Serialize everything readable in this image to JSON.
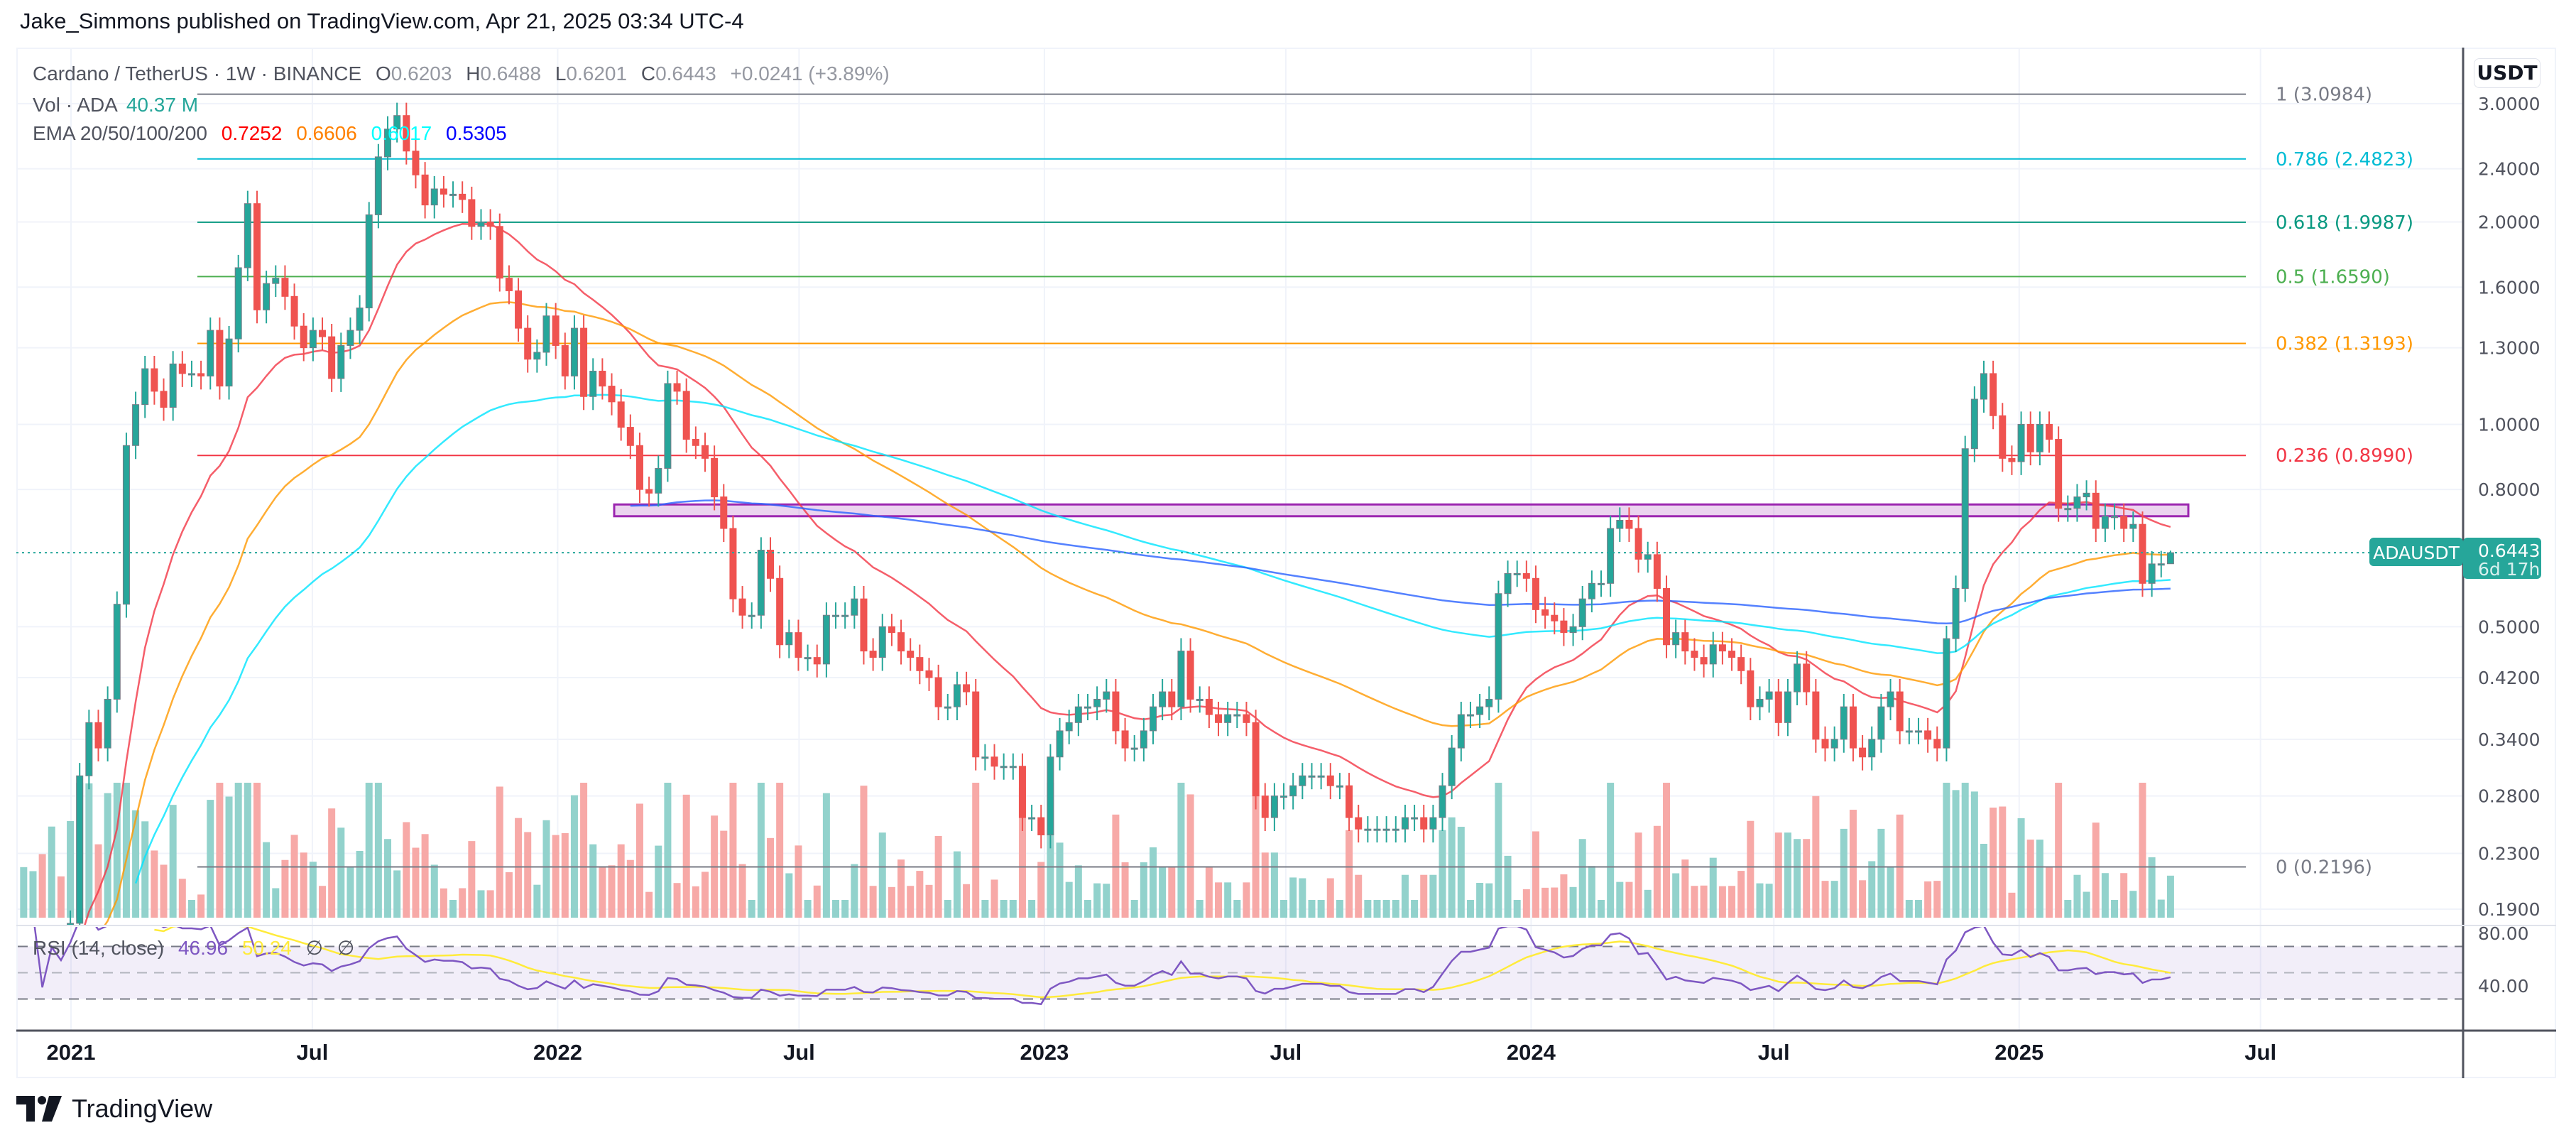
{
  "header": {
    "text": "Jake_Simmons published on TradingView.com, Apr 21, 2025 03:34 UTC-4"
  },
  "legend": {
    "symbol": "Cardano / TetherUS · 1W · BINANCE",
    "o_label": "O",
    "o": "0.6203",
    "h_label": "H",
    "h": "0.6488",
    "l_label": "L",
    "l": "0.6201",
    "c_label": "C",
    "c": "0.6443",
    "change": "+0.0241 (+3.89%)",
    "vol_label": "Vol · ADA",
    "vol_value": "40.37 M",
    "ema_label": "EMA 20/50/100/200",
    "ema20": "0.7252",
    "ema50": "0.6606",
    "ema100": "0.6017",
    "ema200": "0.5305",
    "rsi_label": "RSI (14, close)",
    "rsi_value": "46.96",
    "rsi_ma": "50.24",
    "rsi_na1": "∅",
    "rsi_na2": "∅"
  },
  "price_axis": {
    "currency": "USDT",
    "symbol_badge": "ADAUSDT",
    "last_price": "0.6443",
    "countdown": "6d 17h"
  },
  "colors": {
    "up": "#26a69a",
    "down": "#ef5350",
    "ema20": "#f23645",
    "ema50": "#ff9800",
    "ema100": "#00e5ff",
    "ema200": "#2962ff",
    "rsi": "#7e57c2",
    "rsi_ma": "#ffeb3b",
    "zone": "#9c27b0"
  },
  "logo": {
    "text": "TradingView"
  },
  "chart_data": {
    "type": "candlestick",
    "interval": "1W",
    "start_week": "2020-11-23",
    "y_scale": "log",
    "ylim": [
      0.19,
      3.1
    ],
    "last_candle": {
      "open": 0.6203,
      "high": 0.6488,
      "low": 0.6201,
      "close": 0.6443
    },
    "close": [
      0.152,
      0.159,
      0.148,
      0.166,
      0.16,
      0.181,
      0.3,
      0.36,
      0.33,
      0.39,
      0.54,
      0.93,
      1.07,
      1.21,
      1.12,
      1.06,
      1.23,
      1.19,
      1.19,
      1.18,
      1.38,
      1.14,
      1.34,
      1.71,
      2.13,
      1.48,
      1.62,
      1.65,
      1.55,
      1.4,
      1.3,
      1.38,
      1.35,
      1.17,
      1.31,
      1.38,
      1.49,
      2.05,
      2.5,
      2.75,
      2.88,
      2.55,
      2.35,
      2.12,
      2.24,
      2.2,
      2.2,
      2.16,
      1.97,
      2.0,
      1.97,
      1.65,
      1.58,
      1.39,
      1.25,
      1.28,
      1.45,
      1.31,
      1.18,
      1.39,
      1.1,
      1.2,
      1.14,
      1.08,
      0.99,
      0.93,
      0.8,
      0.79,
      0.86,
      1.15,
      1.12,
      0.95,
      0.93,
      0.89,
      0.78,
      0.7,
      0.55,
      0.52,
      0.52,
      0.65,
      0.59,
      0.47,
      0.49,
      0.45,
      0.45,
      0.44,
      0.52,
      0.52,
      0.52,
      0.55,
      0.46,
      0.45,
      0.5,
      0.49,
      0.46,
      0.45,
      0.43,
      0.42,
      0.38,
      0.38,
      0.41,
      0.4,
      0.32,
      0.32,
      0.31,
      0.31,
      0.31,
      0.26,
      0.26,
      0.245,
      0.32,
      0.35,
      0.36,
      0.38,
      0.38,
      0.39,
      0.4,
      0.35,
      0.33,
      0.33,
      0.35,
      0.38,
      0.4,
      0.38,
      0.46,
      0.39,
      0.39,
      0.37,
      0.36,
      0.37,
      0.37,
      0.36,
      0.28,
      0.26,
      0.28,
      0.28,
      0.29,
      0.3,
      0.3,
      0.3,
      0.29,
      0.29,
      0.26,
      0.25,
      0.25,
      0.25,
      0.25,
      0.25,
      0.26,
      0.26,
      0.25,
      0.26,
      0.29,
      0.33,
      0.37,
      0.37,
      0.38,
      0.39,
      0.56,
      0.6,
      0.6,
      0.59,
      0.53,
      0.52,
      0.51,
      0.49,
      0.5,
      0.55,
      0.58,
      0.58,
      0.7,
      0.72,
      0.7,
      0.63,
      0.64,
      0.57,
      0.47,
      0.49,
      0.46,
      0.45,
      0.44,
      0.47,
      0.46,
      0.45,
      0.43,
      0.38,
      0.39,
      0.4,
      0.36,
      0.4,
      0.44,
      0.4,
      0.34,
      0.33,
      0.34,
      0.38,
      0.33,
      0.32,
      0.34,
      0.38,
      0.4,
      0.35,
      0.35,
      0.35,
      0.34,
      0.33,
      0.48,
      0.57,
      0.92,
      1.09,
      1.19,
      1.03,
      0.89,
      0.88,
      1.0,
      0.91,
      1.0,
      0.95,
      0.75,
      0.75,
      0.78,
      0.79,
      0.7,
      0.73,
      0.73,
      0.7,
      0.71,
      0.58,
      0.62,
      0.6203,
      0.6443
    ],
    "ema_periods": [
      20,
      50,
      100,
      200
    ],
    "fib_levels": [
      {
        "label": "1 (3.0984)",
        "price": 3.0984,
        "color": "#787b86"
      },
      {
        "label": "0.786 (2.4823)",
        "price": 2.4823,
        "color": "#00bcd4"
      },
      {
        "label": "0.618 (1.9987)",
        "price": 1.9987,
        "color": "#089981"
      },
      {
        "label": "0.5 (1.6590)",
        "price": 1.659,
        "color": "#4caf50"
      },
      {
        "label": "0.382 (1.3193)",
        "price": 1.3193,
        "color": "#ff9800"
      },
      {
        "label": "0.236 (0.8990)",
        "price": 0.899,
        "color": "#f23645"
      },
      {
        "label": "0 (0.2196)",
        "price": 0.2196,
        "color": "#787b86"
      }
    ],
    "resistance_zone": [
      0.73,
      0.76
    ],
    "y_ticks": [
      {
        "v": 3.0,
        "label": "3.0000"
      },
      {
        "v": 2.4,
        "label": "2.4000"
      },
      {
        "v": 2.0,
        "label": "2.0000"
      },
      {
        "v": 1.6,
        "label": "1.6000"
      },
      {
        "v": 1.3,
        "label": "1.3000"
      },
      {
        "v": 1.0,
        "label": "1.0000"
      },
      {
        "v": 0.8,
        "label": "0.8000"
      },
      {
        "v": 0.5,
        "label": "0.5000"
      },
      {
        "v": 0.42,
        "label": "0.4200"
      },
      {
        "v": 0.34,
        "label": "0.3400"
      },
      {
        "v": 0.28,
        "label": "0.2800"
      },
      {
        "v": 0.23,
        "label": "0.2300"
      },
      {
        "v": 0.19,
        "label": "0.1900"
      }
    ],
    "x_ticks": [
      {
        "date": "2021-01-01",
        "label": "2021"
      },
      {
        "date": "2021-07-01",
        "label": "Jul"
      },
      {
        "date": "2022-01-01",
        "label": "2022"
      },
      {
        "date": "2022-07-01",
        "label": "Jul"
      },
      {
        "date": "2023-01-01",
        "label": "2023"
      },
      {
        "date": "2023-07-01",
        "label": "Jul"
      },
      {
        "date": "2024-01-01",
        "label": "2024"
      },
      {
        "date": "2024-07-01",
        "label": "Jul"
      },
      {
        "date": "2025-01-01",
        "label": "2025"
      },
      {
        "date": "2025-07-01",
        "label": "Jul"
      }
    ],
    "rsi": {
      "period": 14,
      "ticks": [
        {
          "v": 80,
          "label": "80.00"
        },
        {
          "v": 40,
          "label": "40.00"
        }
      ],
      "bands": [
        70,
        50,
        30
      ]
    }
  }
}
